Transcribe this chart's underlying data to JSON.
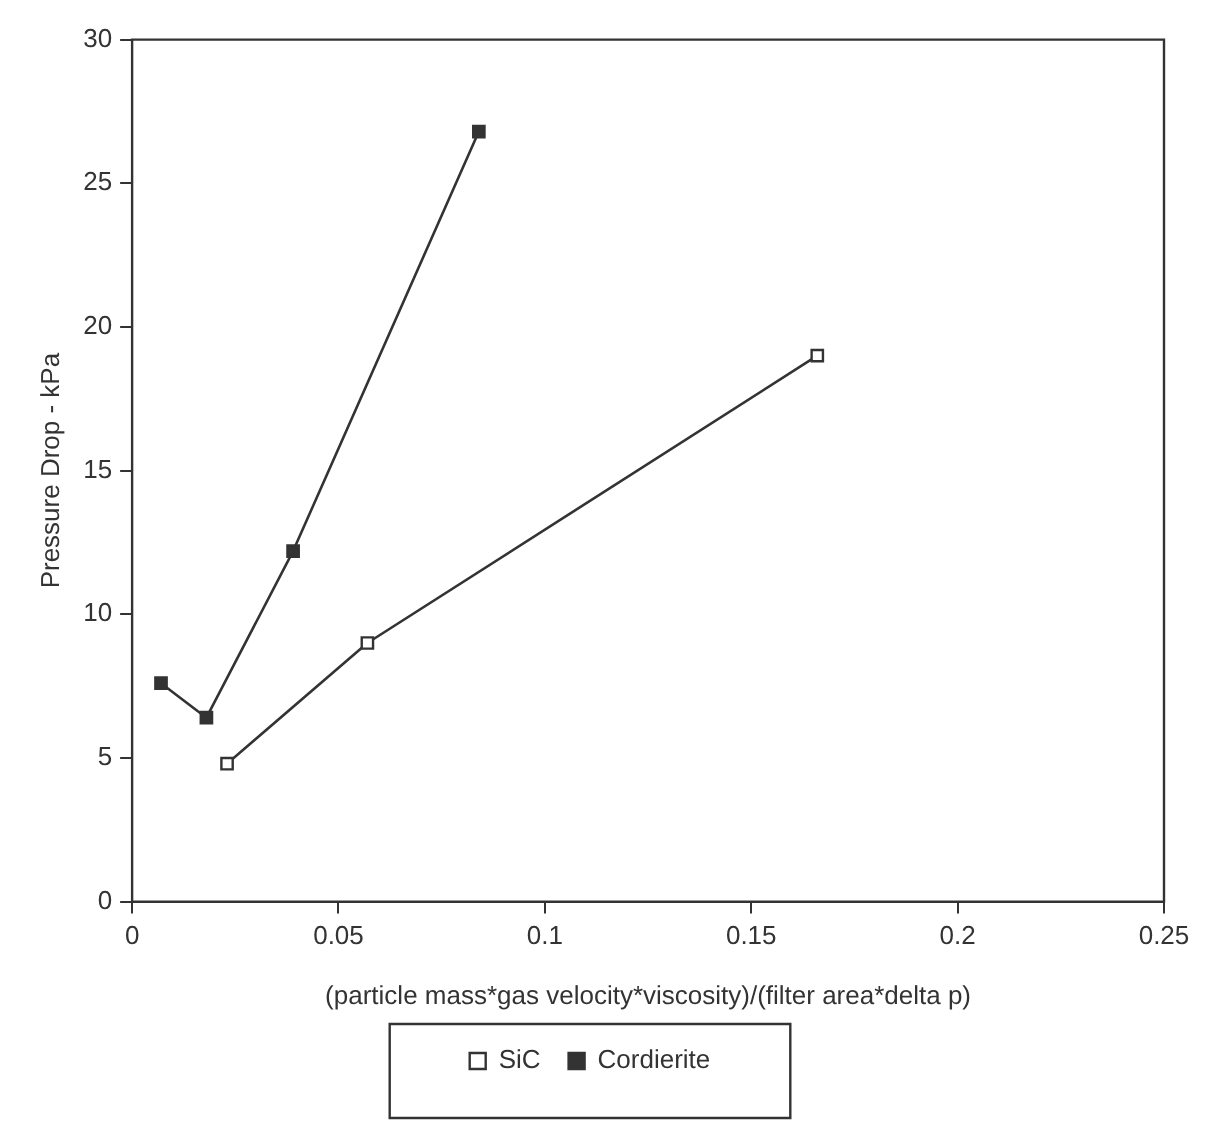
{
  "chart_data": {
    "type": "line",
    "xlabel": "(particle mass*gas velocity*viscosity)/(filter area*delta p)",
    "ylabel": "Pressure Drop - kPa",
    "xlim": [
      0,
      0.25
    ],
    "xticks": [
      0,
      0.05,
      0.1,
      0.15,
      0.2,
      0.25
    ],
    "ylim": [
      0,
      30
    ],
    "yticks": [
      0,
      5,
      10,
      15,
      20,
      25,
      30
    ],
    "grid": false,
    "legend": "bottom",
    "marker": "square",
    "line_style": "solid",
    "series": [
      {
        "name": "SiC",
        "color": "#333333",
        "x": [
          0.023,
          0.057,
          0.166
        ],
        "values": [
          4.8,
          9.0,
          19.0
        ]
      },
      {
        "name": "Cordierite",
        "color": "#333333",
        "x": [
          0.007,
          0.018,
          0.039,
          0.084
        ],
        "values": [
          7.6,
          6.4,
          12.2,
          26.8
        ]
      }
    ]
  }
}
